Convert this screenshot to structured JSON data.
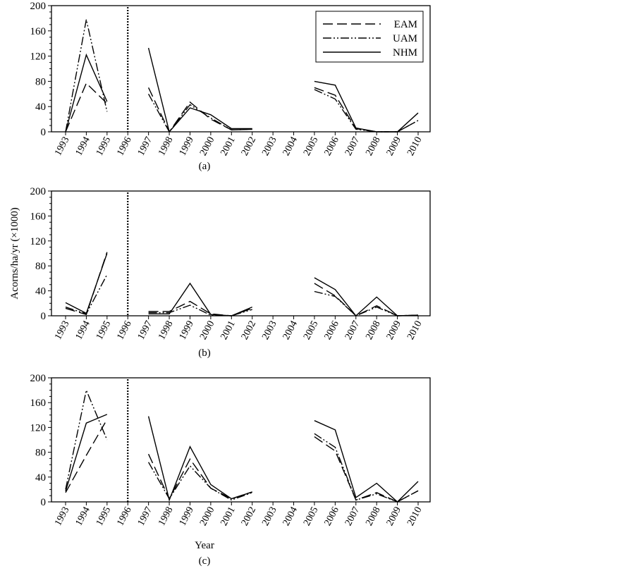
{
  "chart_data": [
    {
      "type": "line",
      "panel_label": "(a)",
      "x": [
        1993,
        1994,
        1995,
        1996,
        1997,
        1998,
        1999,
        2000,
        2001,
        2002,
        2003,
        2004,
        2005,
        2006,
        2007,
        2008,
        2009,
        2010
      ],
      "ylim": [
        0,
        200
      ],
      "yticks": [
        0,
        40,
        80,
        120,
        160,
        200
      ],
      "vline_x": 1996,
      "legend": {
        "placement": "top-right",
        "entries": [
          "EAM",
          "UAM",
          "NHM"
        ]
      },
      "series": [
        {
          "name": "EAM",
          "style": "dashed",
          "values": [
            0,
            77,
            45,
            null,
            70,
            0,
            47,
            20,
            3,
            4,
            null,
            null,
            70,
            58,
            5,
            0,
            0,
            18
          ]
        },
        {
          "name": "UAM",
          "style": "dash-dot-dot",
          "values": [
            0,
            178,
            32,
            null,
            60,
            0,
            43,
            22,
            3,
            4,
            null,
            null,
            67,
            52,
            4,
            0,
            0,
            18
          ]
        },
        {
          "name": "NHM",
          "style": "solid",
          "values": [
            0,
            122,
            48,
            null,
            133,
            0,
            38,
            27,
            5,
            5,
            null,
            null,
            80,
            74,
            6,
            0,
            0,
            30
          ]
        }
      ]
    },
    {
      "type": "line",
      "panel_label": "(b)",
      "ylabel": "Acorns/ha/yr (×1000)",
      "x": [
        1993,
        1994,
        1995,
        1996,
        1997,
        1998,
        1999,
        2000,
        2001,
        2002,
        2003,
        2004,
        2005,
        2006,
        2007,
        2008,
        2009,
        2010
      ],
      "ylim": [
        0,
        200
      ],
      "yticks": [
        0,
        40,
        80,
        120,
        160,
        200
      ],
      "vline_x": 1996,
      "series": [
        {
          "name": "EAM",
          "style": "dashed",
          "values": [
            12,
            2,
            102,
            null,
            7,
            7,
            23,
            3,
            0,
            12,
            null,
            null,
            52,
            32,
            0,
            16,
            0,
            1
          ]
        },
        {
          "name": "UAM",
          "style": "dash-dot-dot",
          "values": [
            14,
            3,
            66,
            null,
            5,
            5,
            17,
            1,
            0,
            10,
            null,
            null,
            39,
            31,
            0,
            14,
            0,
            1
          ]
        },
        {
          "name": "NHM",
          "style": "solid",
          "values": [
            21,
            4,
            100,
            null,
            3,
            3,
            52,
            2,
            0,
            14,
            null,
            null,
            61,
            42,
            0,
            30,
            0,
            1
          ]
        }
      ]
    },
    {
      "type": "line",
      "panel_label": "(c)",
      "xlabel": "Year",
      "x": [
        1993,
        1994,
        1995,
        1996,
        1997,
        1998,
        1999,
        2000,
        2001,
        2002,
        2003,
        2004,
        2005,
        2006,
        2007,
        2008,
        2009,
        2010
      ],
      "ylim": [
        0,
        200
      ],
      "yticks": [
        0,
        40,
        80,
        120,
        160,
        200
      ],
      "vline_x": 1996,
      "series": [
        {
          "name": "EAM",
          "style": "dashed",
          "values": [
            15,
            75,
            133,
            null,
            77,
            5,
            69,
            22,
            5,
            16,
            null,
            null,
            105,
            82,
            3,
            15,
            0,
            18
          ]
        },
        {
          "name": "UAM",
          "style": "dash-dot-dot",
          "values": [
            20,
            180,
            100,
            null,
            64,
            5,
            58,
            22,
            3,
            15,
            null,
            null,
            110,
            88,
            3,
            13,
            0,
            18
          ]
        },
        {
          "name": "NHM",
          "style": "solid",
          "values": [
            17,
            127,
            141,
            null,
            138,
            3,
            89,
            28,
            5,
            16,
            null,
            null,
            131,
            116,
            7,
            30,
            0,
            33
          ]
        }
      ]
    }
  ]
}
